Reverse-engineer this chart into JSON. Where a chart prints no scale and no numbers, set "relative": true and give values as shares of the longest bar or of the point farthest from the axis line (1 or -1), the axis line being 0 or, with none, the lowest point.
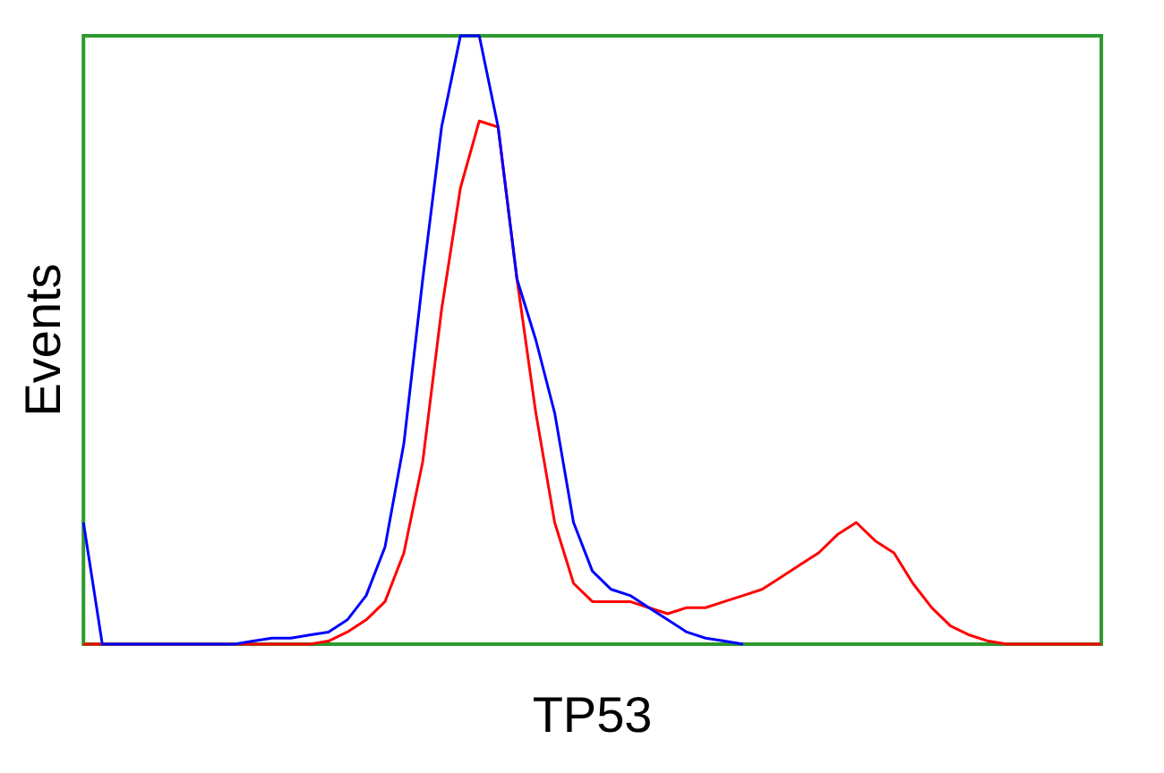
{
  "chart_data": {
    "type": "line",
    "xlabel": "TP53",
    "ylabel": "Events",
    "relative": true,
    "grid": false,
    "legend": false,
    "marker": "none",
    "line_style": "solid",
    "categories": [
      null,
      null,
      null,
      null,
      null,
      null,
      null,
      null,
      null,
      null,
      null,
      null,
      null,
      null,
      null,
      null,
      null,
      null,
      null,
      null,
      null,
      null,
      null,
      null,
      null,
      null,
      null,
      null,
      null,
      null,
      null,
      null,
      null,
      null,
      null,
      null,
      null,
      null,
      null,
      null,
      null,
      null,
      null,
      null,
      null,
      null,
      null,
      null,
      null,
      null,
      null,
      null,
      null,
      null,
      null
    ],
    "series": [
      {
        "color": "#0000ff",
        "values": [
          0.2,
          0,
          0,
          0,
          0,
          0,
          0,
          0,
          0,
          0.005,
          0.01,
          0.01,
          0.015,
          0.02,
          0.04,
          0.08,
          0.16,
          0.33,
          0.6,
          0.85,
          1,
          1,
          0.85,
          0.6,
          0.5,
          0.38,
          0.2,
          0.12,
          0.09,
          0.08,
          0.06,
          0.04,
          0.02,
          0.01,
          0.005,
          0,
          null,
          null,
          null,
          null,
          null,
          null,
          null,
          null,
          null,
          null,
          null,
          null,
          null,
          null,
          null,
          null,
          null,
          null,
          null
        ]
      },
      {
        "color": "#ff0000",
        "values": [
          0,
          0,
          0,
          0,
          0,
          0,
          0,
          0,
          0,
          0,
          0,
          0,
          0,
          0.005,
          0.02,
          0.04,
          0.07,
          0.15,
          0.3,
          0.55,
          0.75,
          0.86,
          0.85,
          0.6,
          0.38,
          0.2,
          0.1,
          0.07,
          0.07,
          0.07,
          0.06,
          0.05,
          0.06,
          0.06,
          0.07,
          0.08,
          0.09,
          0.11,
          0.13,
          0.15,
          0.18,
          0.2,
          0.17,
          0.15,
          0.1,
          0.06,
          0.03,
          0.015,
          0.005,
          0,
          0,
          0,
          0,
          0,
          0
        ]
      }
    ]
  }
}
